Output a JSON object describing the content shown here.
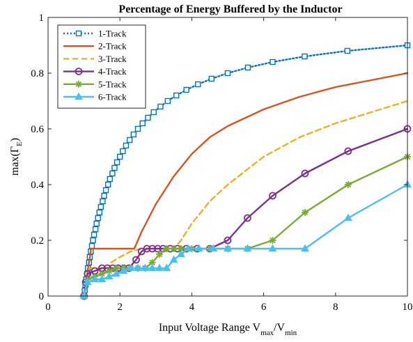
{
  "chart_data": {
    "type": "line",
    "title": "Percentage of Energy Buffered by the Inductor",
    "xlabel": {
      "main": "Input Voltage Range V",
      "sub1": "max",
      "mid": "/V",
      "sub2": "min"
    },
    "ylabel": {
      "main": "max(Γ",
      "sub": "E",
      "end": ")"
    },
    "xlim": [
      0,
      10
    ],
    "ylim": [
      0,
      1
    ],
    "xticks": [
      0,
      2,
      4,
      6,
      8,
      10
    ],
    "yticks": [
      0,
      0.2,
      0.4,
      0.6,
      0.8,
      1
    ],
    "xtick_labels": [
      "0",
      "2",
      "4",
      "6",
      "8",
      "10"
    ],
    "ytick_labels": [
      "0",
      "0.2",
      "0.4",
      "0.6",
      "0.8",
      "1"
    ],
    "grid": false,
    "legend_position": "top-left",
    "series": [
      {
        "name": "1-Track",
        "color": "#0072BD",
        "dash": "dotted",
        "marker": "square",
        "points": [
          [
            1.0,
            0.0
          ],
          [
            1.02,
            0.02
          ],
          [
            1.04,
            0.04
          ],
          [
            1.06,
            0.06
          ],
          [
            1.09,
            0.08
          ],
          [
            1.11,
            0.1
          ],
          [
            1.14,
            0.12
          ],
          [
            1.16,
            0.14
          ],
          [
            1.19,
            0.16
          ],
          [
            1.22,
            0.18
          ],
          [
            1.25,
            0.2
          ],
          [
            1.28,
            0.22
          ],
          [
            1.32,
            0.24
          ],
          [
            1.35,
            0.26
          ],
          [
            1.39,
            0.28
          ],
          [
            1.43,
            0.3
          ],
          [
            1.47,
            0.32
          ],
          [
            1.52,
            0.34
          ],
          [
            1.56,
            0.36
          ],
          [
            1.61,
            0.38
          ],
          [
            1.67,
            0.4
          ],
          [
            1.72,
            0.42
          ],
          [
            1.79,
            0.44
          ],
          [
            1.85,
            0.46
          ],
          [
            1.92,
            0.48
          ],
          [
            2.0,
            0.5
          ],
          [
            2.08,
            0.52
          ],
          [
            2.17,
            0.54
          ],
          [
            2.27,
            0.56
          ],
          [
            2.38,
            0.58
          ],
          [
            2.5,
            0.6
          ],
          [
            2.63,
            0.62
          ],
          [
            2.78,
            0.64
          ],
          [
            2.94,
            0.66
          ],
          [
            3.13,
            0.68
          ],
          [
            3.33,
            0.7
          ],
          [
            3.57,
            0.72
          ],
          [
            3.85,
            0.74
          ],
          [
            4.17,
            0.76
          ],
          [
            4.55,
            0.78
          ],
          [
            5.0,
            0.8
          ],
          [
            5.56,
            0.82
          ],
          [
            6.25,
            0.84
          ],
          [
            7.14,
            0.86
          ],
          [
            8.33,
            0.88
          ],
          [
            10.0,
            0.9
          ]
        ]
      },
      {
        "name": "2-Track",
        "color": "#D95319",
        "dash": "solid",
        "marker": "none",
        "points": [
          [
            1.0,
            0.0
          ],
          [
            1.1,
            0.09
          ],
          [
            1.2,
            0.17
          ],
          [
            1.4,
            0.17
          ],
          [
            2.0,
            0.17
          ],
          [
            2.4,
            0.17
          ],
          [
            2.6,
            0.23
          ],
          [
            3.0,
            0.33
          ],
          [
            3.5,
            0.43
          ],
          [
            4.0,
            0.51
          ],
          [
            4.5,
            0.57
          ],
          [
            5.0,
            0.61
          ],
          [
            6.0,
            0.67
          ],
          [
            7.0,
            0.715
          ],
          [
            8.0,
            0.75
          ],
          [
            9.0,
            0.775
          ],
          [
            10.0,
            0.8
          ]
        ]
      },
      {
        "name": "3-Track",
        "color": "#EDB120",
        "dash": "dashed",
        "marker": "none",
        "points": [
          [
            1.0,
            0.0
          ],
          [
            1.08,
            0.06
          ],
          [
            1.15,
            0.1
          ],
          [
            1.4,
            0.1
          ],
          [
            1.7,
            0.1
          ],
          [
            1.75,
            0.12
          ],
          [
            2.0,
            0.14
          ],
          [
            2.3,
            0.16
          ],
          [
            2.6,
            0.17
          ],
          [
            3.5,
            0.17
          ],
          [
            3.7,
            0.2
          ],
          [
            4.0,
            0.26
          ],
          [
            4.5,
            0.34
          ],
          [
            5.0,
            0.4
          ],
          [
            6.0,
            0.5
          ],
          [
            7.0,
            0.57
          ],
          [
            8.0,
            0.62
          ],
          [
            9.0,
            0.66
          ],
          [
            10.0,
            0.7
          ]
        ]
      },
      {
        "name": "4-Track",
        "color": "#7E2F8E",
        "dash": "solid",
        "marker": "circle",
        "points": [
          [
            1.0,
            0.0
          ],
          [
            1.05,
            0.05
          ],
          [
            1.1,
            0.08
          ],
          [
            1.3,
            0.09
          ],
          [
            1.5,
            0.1
          ],
          [
            1.65,
            0.1
          ],
          [
            1.8,
            0.1
          ],
          [
            1.95,
            0.1
          ],
          [
            2.1,
            0.1
          ],
          [
            2.25,
            0.1
          ],
          [
            2.45,
            0.13
          ],
          [
            2.6,
            0.16
          ],
          [
            2.75,
            0.17
          ],
          [
            2.9,
            0.17
          ],
          [
            3.05,
            0.17
          ],
          [
            3.2,
            0.17
          ],
          [
            3.4,
            0.17
          ],
          [
            3.6,
            0.17
          ],
          [
            3.85,
            0.17
          ],
          [
            4.15,
            0.17
          ],
          [
            4.5,
            0.17
          ],
          [
            5.0,
            0.2
          ],
          [
            5.55,
            0.28
          ],
          [
            6.25,
            0.36
          ],
          [
            7.15,
            0.44
          ],
          [
            8.35,
            0.52
          ],
          [
            10.0,
            0.6
          ]
        ]
      },
      {
        "name": "5-Track",
        "color": "#77AC30",
        "dash": "solid",
        "marker": "asterisk",
        "points": [
          [
            1.0,
            0.0
          ],
          [
            1.1,
            0.06
          ],
          [
            1.3,
            0.07
          ],
          [
            1.5,
            0.08
          ],
          [
            1.7,
            0.09
          ],
          [
            1.9,
            0.1
          ],
          [
            2.1,
            0.1
          ],
          [
            2.3,
            0.1
          ],
          [
            2.5,
            0.1
          ],
          [
            2.7,
            0.1
          ],
          [
            2.9,
            0.12
          ],
          [
            3.1,
            0.15
          ],
          [
            3.3,
            0.17
          ],
          [
            3.5,
            0.17
          ],
          [
            3.7,
            0.17
          ],
          [
            4.0,
            0.17
          ],
          [
            4.5,
            0.17
          ],
          [
            5.0,
            0.17
          ],
          [
            5.55,
            0.17
          ],
          [
            6.25,
            0.2
          ],
          [
            7.15,
            0.3
          ],
          [
            8.35,
            0.4
          ],
          [
            10.0,
            0.5
          ]
        ]
      },
      {
        "name": "6-Track",
        "color": "#4DBEEE",
        "dash": "solid",
        "marker": "triangle",
        "points": [
          [
            1.0,
            0.0
          ],
          [
            1.1,
            0.05
          ],
          [
            1.3,
            0.06
          ],
          [
            1.5,
            0.06
          ],
          [
            1.7,
            0.07
          ],
          [
            1.9,
            0.08
          ],
          [
            2.1,
            0.09
          ],
          [
            2.3,
            0.1
          ],
          [
            2.5,
            0.1
          ],
          [
            2.7,
            0.1
          ],
          [
            2.9,
            0.1
          ],
          [
            3.1,
            0.1
          ],
          [
            3.3,
            0.1
          ],
          [
            3.5,
            0.13
          ],
          [
            3.7,
            0.15
          ],
          [
            3.9,
            0.17
          ],
          [
            4.2,
            0.17
          ],
          [
            4.6,
            0.17
          ],
          [
            5.0,
            0.17
          ],
          [
            5.55,
            0.17
          ],
          [
            6.25,
            0.17
          ],
          [
            7.15,
            0.17
          ],
          [
            8.35,
            0.28
          ],
          [
            10.0,
            0.4
          ]
        ]
      }
    ]
  }
}
